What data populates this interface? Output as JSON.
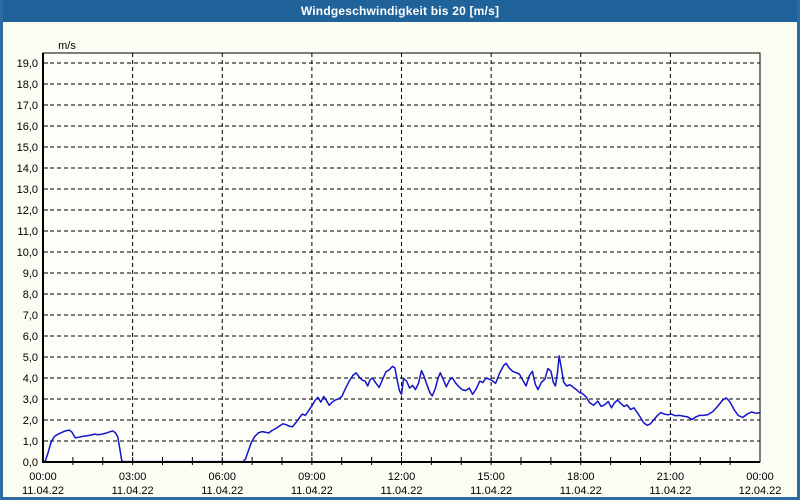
{
  "window": {
    "title": "Windgeschwindigkeit bis 20 [m/s]"
  },
  "colors": {
    "titlebar": "#20639B",
    "titlebar_text": "#FFFFFF",
    "window_border": "#2D6CA2",
    "background": "#FBFDF3",
    "plot_background": "#FDFEF8",
    "grid": "#000000",
    "axis": "#000000",
    "line": "#1414C8",
    "label_text": "#000000"
  },
  "chart_data": {
    "type": "line",
    "title": "Windgeschwindigkeit bis 20 [m/s]",
    "unit_label": "m/s",
    "grid": "dashed",
    "legend": "none",
    "y_axis": {
      "min": 0,
      "max": 19.5,
      "tick_step": 1,
      "tick_labels": [
        "0,0",
        "1,0",
        "2,0",
        "3,0",
        "4,0",
        "5,0",
        "6,0",
        "7,0",
        "8,0",
        "9,0",
        "10,0",
        "11,0",
        "12,0",
        "13,0",
        "14,0",
        "15,0",
        "16,0",
        "17,0",
        "18,0",
        "19,0"
      ]
    },
    "x_axis": {
      "span_hours": 24,
      "major_step_hours": 3,
      "minor_tick_hours": 1,
      "ticks": [
        {
          "hour": 0,
          "time": "00:00",
          "date": "11.04.22"
        },
        {
          "hour": 3,
          "time": "03:00",
          "date": "11.04.22"
        },
        {
          "hour": 6,
          "time": "06:00",
          "date": "11.04.22"
        },
        {
          "hour": 9,
          "time": "09:00",
          "date": "11.04.22"
        },
        {
          "hour": 12,
          "time": "12:00",
          "date": "11.04.22"
        },
        {
          "hour": 15,
          "time": "15:00",
          "date": "11.04.22"
        },
        {
          "hour": 18,
          "time": "18:00",
          "date": "11.04.22"
        },
        {
          "hour": 21,
          "time": "21:00",
          "date": "11.04.22"
        },
        {
          "hour": 24,
          "time": "00:00",
          "date": "12.04.22"
        }
      ]
    },
    "series": [
      {
        "name": "Windgeschwindigkeit",
        "color": "#1414C8",
        "points": [
          [
            0.0,
            0.02
          ],
          [
            0.08,
            0.05
          ],
          [
            0.17,
            0.45
          ],
          [
            0.27,
            0.95
          ],
          [
            0.38,
            1.22
          ],
          [
            0.5,
            1.32
          ],
          [
            0.62,
            1.4
          ],
          [
            0.75,
            1.48
          ],
          [
            0.88,
            1.52
          ],
          [
            0.97,
            1.42
          ],
          [
            1.08,
            1.15
          ],
          [
            1.2,
            1.18
          ],
          [
            1.33,
            1.22
          ],
          [
            1.47,
            1.25
          ],
          [
            1.6,
            1.28
          ],
          [
            1.72,
            1.33
          ],
          [
            1.83,
            1.3
          ],
          [
            1.95,
            1.32
          ],
          [
            2.08,
            1.36
          ],
          [
            2.2,
            1.42
          ],
          [
            2.33,
            1.48
          ],
          [
            2.42,
            1.4
          ],
          [
            2.5,
            1.2
          ],
          [
            2.58,
            0.55
          ],
          [
            2.63,
            0.1
          ],
          [
            2.67,
            0.02
          ],
          [
            3.0,
            0.02
          ],
          [
            3.5,
            0.02
          ],
          [
            4.0,
            0.02
          ],
          [
            4.5,
            0.02
          ],
          [
            5.0,
            0.02
          ],
          [
            5.5,
            0.02
          ],
          [
            6.0,
            0.02
          ],
          [
            6.5,
            0.02
          ],
          [
            6.7,
            0.02
          ],
          [
            6.78,
            0.15
          ],
          [
            6.88,
            0.55
          ],
          [
            6.98,
            0.95
          ],
          [
            7.08,
            1.2
          ],
          [
            7.2,
            1.38
          ],
          [
            7.33,
            1.45
          ],
          [
            7.45,
            1.42
          ],
          [
            7.55,
            1.38
          ],
          [
            7.67,
            1.5
          ],
          [
            7.8,
            1.6
          ],
          [
            7.92,
            1.72
          ],
          [
            8.03,
            1.82
          ],
          [
            8.13,
            1.78
          ],
          [
            8.25,
            1.7
          ],
          [
            8.35,
            1.68
          ],
          [
            8.47,
            1.88
          ],
          [
            8.58,
            2.1
          ],
          [
            8.68,
            2.28
          ],
          [
            8.78,
            2.22
          ],
          [
            8.88,
            2.42
          ],
          [
            9.0,
            2.68
          ],
          [
            9.1,
            2.92
          ],
          [
            9.2,
            3.08
          ],
          [
            9.3,
            2.85
          ],
          [
            9.4,
            3.12
          ],
          [
            9.48,
            2.95
          ],
          [
            9.58,
            2.7
          ],
          [
            9.68,
            2.85
          ],
          [
            9.78,
            2.95
          ],
          [
            9.88,
            3.0
          ],
          [
            10.0,
            3.12
          ],
          [
            10.12,
            3.48
          ],
          [
            10.25,
            3.85
          ],
          [
            10.37,
            4.12
          ],
          [
            10.48,
            4.25
          ],
          [
            10.58,
            4.05
          ],
          [
            10.68,
            3.9
          ],
          [
            10.78,
            3.85
          ],
          [
            10.87,
            3.62
          ],
          [
            10.95,
            3.92
          ],
          [
            11.03,
            4.0
          ],
          [
            11.13,
            3.78
          ],
          [
            11.25,
            3.55
          ],
          [
            11.37,
            3.95
          ],
          [
            11.48,
            4.3
          ],
          [
            11.58,
            4.38
          ],
          [
            11.7,
            4.55
          ],
          [
            11.78,
            4.48
          ],
          [
            11.85,
            3.95
          ],
          [
            11.93,
            3.4
          ],
          [
            12.0,
            3.22
          ],
          [
            12.07,
            3.98
          ],
          [
            12.17,
            3.85
          ],
          [
            12.27,
            3.52
          ],
          [
            12.37,
            3.65
          ],
          [
            12.47,
            3.45
          ],
          [
            12.57,
            3.75
          ],
          [
            12.67,
            4.35
          ],
          [
            12.75,
            4.1
          ],
          [
            12.85,
            3.68
          ],
          [
            12.95,
            3.3
          ],
          [
            13.03,
            3.15
          ],
          [
            13.13,
            3.5
          ],
          [
            13.23,
            4.02
          ],
          [
            13.3,
            4.25
          ],
          [
            13.4,
            3.92
          ],
          [
            13.5,
            3.58
          ],
          [
            13.6,
            3.88
          ],
          [
            13.7,
            4.02
          ],
          [
            13.8,
            3.78
          ],
          [
            13.92,
            3.58
          ],
          [
            14.03,
            3.45
          ],
          [
            14.15,
            3.4
          ],
          [
            14.27,
            3.52
          ],
          [
            14.38,
            3.22
          ],
          [
            14.5,
            3.48
          ],
          [
            14.62,
            3.85
          ],
          [
            14.72,
            3.78
          ],
          [
            14.83,
            4.0
          ],
          [
            14.93,
            3.95
          ],
          [
            15.03,
            3.88
          ],
          [
            15.15,
            3.75
          ],
          [
            15.28,
            4.22
          ],
          [
            15.42,
            4.6
          ],
          [
            15.5,
            4.7
          ],
          [
            15.6,
            4.48
          ],
          [
            15.72,
            4.32
          ],
          [
            15.85,
            4.25
          ],
          [
            15.95,
            4.18
          ],
          [
            16.05,
            3.92
          ],
          [
            16.17,
            3.62
          ],
          [
            16.28,
            4.12
          ],
          [
            16.38,
            4.32
          ],
          [
            16.48,
            3.7
          ],
          [
            16.57,
            3.45
          ],
          [
            16.68,
            3.78
          ],
          [
            16.8,
            3.95
          ],
          [
            16.9,
            4.45
          ],
          [
            17.0,
            4.32
          ],
          [
            17.08,
            3.8
          ],
          [
            17.15,
            3.62
          ],
          [
            17.22,
            4.22
          ],
          [
            17.28,
            5.05
          ],
          [
            17.35,
            4.48
          ],
          [
            17.43,
            3.8
          ],
          [
            17.53,
            3.62
          ],
          [
            17.63,
            3.68
          ],
          [
            17.73,
            3.58
          ],
          [
            17.85,
            3.45
          ],
          [
            17.95,
            3.32
          ],
          [
            18.07,
            3.25
          ],
          [
            18.18,
            3.1
          ],
          [
            18.3,
            2.82
          ],
          [
            18.43,
            2.7
          ],
          [
            18.57,
            2.9
          ],
          [
            18.68,
            2.65
          ],
          [
            18.8,
            2.72
          ],
          [
            18.92,
            2.88
          ],
          [
            19.03,
            2.58
          ],
          [
            19.13,
            2.82
          ],
          [
            19.23,
            2.95
          ],
          [
            19.33,
            2.8
          ],
          [
            19.45,
            2.65
          ],
          [
            19.55,
            2.72
          ],
          [
            19.67,
            2.5
          ],
          [
            19.78,
            2.58
          ],
          [
            19.88,
            2.38
          ],
          [
            20.0,
            2.12
          ],
          [
            20.1,
            1.88
          ],
          [
            20.22,
            1.75
          ],
          [
            20.33,
            1.82
          ],
          [
            20.45,
            2.02
          ],
          [
            20.57,
            2.22
          ],
          [
            20.68,
            2.35
          ],
          [
            20.8,
            2.28
          ],
          [
            20.92,
            2.25
          ],
          [
            21.03,
            2.28
          ],
          [
            21.17,
            2.2
          ],
          [
            21.3,
            2.22
          ],
          [
            21.45,
            2.18
          ],
          [
            21.58,
            2.15
          ],
          [
            21.72,
            2.02
          ],
          [
            21.85,
            2.15
          ],
          [
            21.97,
            2.22
          ],
          [
            22.1,
            2.22
          ],
          [
            22.25,
            2.25
          ],
          [
            22.42,
            2.4
          ],
          [
            22.58,
            2.65
          ],
          [
            22.75,
            2.95
          ],
          [
            22.87,
            3.05
          ],
          [
            23.0,
            2.85
          ],
          [
            23.13,
            2.5
          ],
          [
            23.27,
            2.22
          ],
          [
            23.42,
            2.12
          ],
          [
            23.57,
            2.28
          ],
          [
            23.72,
            2.38
          ],
          [
            23.87,
            2.32
          ],
          [
            24.0,
            2.35
          ]
        ]
      }
    ]
  }
}
